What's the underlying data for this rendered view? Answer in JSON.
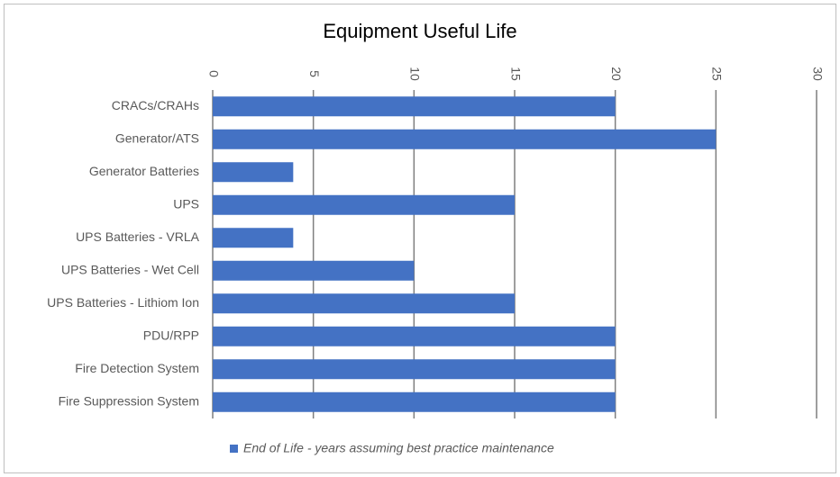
{
  "chart_data": {
    "type": "bar",
    "orientation": "horizontal",
    "title": "Equipment Useful Life",
    "categories": [
      "CRACs/CRAHs",
      "Generator/ATS",
      "Generator Batteries",
      "UPS",
      "UPS Batteries - VRLA",
      "UPS Batteries - Wet Cell",
      "UPS Batteries - Lithiom Ion",
      "PDU/RPP",
      "Fire Detection System",
      "Fire Suppression System"
    ],
    "series": [
      {
        "name": "End of Life - years assuming best practice maintenance",
        "color": "#4472c4",
        "values": [
          20,
          25,
          4,
          15,
          4,
          10,
          15,
          20,
          20,
          20
        ]
      }
    ],
    "xlim": [
      0,
      30
    ],
    "xticks": [
      0,
      5,
      10,
      15,
      20,
      25,
      30
    ],
    "grid": true,
    "legend": "bottom"
  }
}
